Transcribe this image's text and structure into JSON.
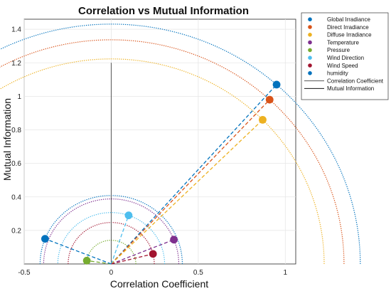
{
  "chart_data": {
    "type": "scatter",
    "title": "Correlation vs Mutual Information",
    "xlabel": "Correlation Coefficient",
    "ylabel": "Mutual Information",
    "xlim": [
      -0.5,
      1.06
    ],
    "ylim": [
      0,
      1.46
    ],
    "xticks": [
      -0.5,
      0,
      0.5,
      1
    ],
    "xtick_labels": [
      "-0.5",
      "0",
      "0.5",
      "1"
    ],
    "yticks": [
      0.2,
      0.4,
      0.6,
      0.8,
      1,
      1.2,
      1.4
    ],
    "ytick_labels": [
      "0.2",
      "0.4",
      "0.6",
      "0.8",
      "1",
      "1.2",
      "1.4"
    ],
    "grid": true,
    "legend_position": "top-right, outside",
    "reference_line": {
      "name": "Correlation Coefficient",
      "x": 0,
      "y_range": [
        0,
        1.2
      ],
      "color": "#555555"
    },
    "series": [
      {
        "name": "Global Irradiance",
        "color": "#0072BD",
        "x": 0.95,
        "y": 1.07
      },
      {
        "name": "Direct Irradiance",
        "color": "#D95319",
        "x": 0.91,
        "y": 0.98
      },
      {
        "name": "Diffuse Irradiance",
        "color": "#EDB120",
        "x": 0.87,
        "y": 0.86
      },
      {
        "name": "Temperature",
        "color": "#7E2F8E",
        "x": 0.36,
        "y": 0.145
      },
      {
        "name": "Pressure",
        "color": "#77AC30",
        "x": -0.14,
        "y": 0.02
      },
      {
        "name": "Wind Direction",
        "color": "#4DBEEE",
        "x": 0.1,
        "y": 0.29
      },
      {
        "name": "Wind Speed",
        "color": "#A2142F",
        "x": 0.24,
        "y": 0.06
      },
      {
        "name": "humidity",
        "color": "#0072BD",
        "x": -0.38,
        "y": 0.15
      }
    ],
    "line_series": [
      {
        "name": "Correlation Coefficient",
        "color": "#555555"
      },
      {
        "name": "Mutual Information",
        "color": "#111111"
      }
    ]
  }
}
